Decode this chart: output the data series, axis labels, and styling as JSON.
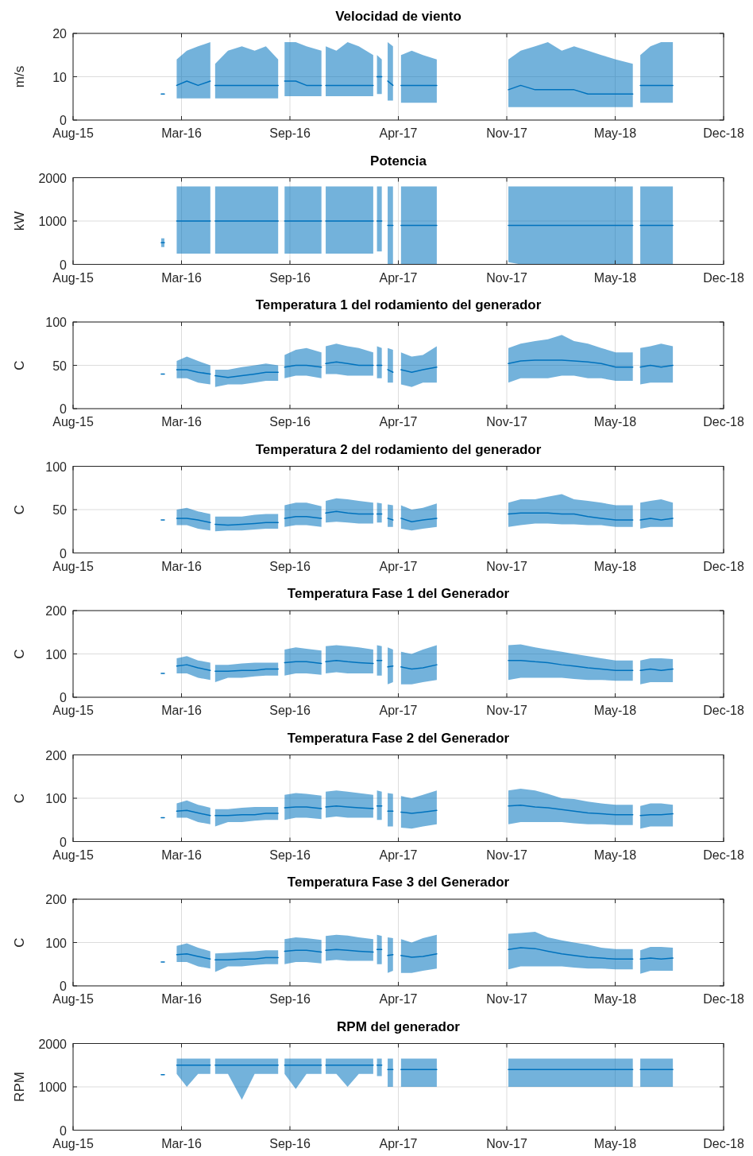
{
  "chart_data": [
    {
      "type": "line",
      "title": "Velocidad de viento",
      "ylabel": "m/s",
      "grid": true,
      "xlim": [
        "2015-08-20",
        "2018-12-20"
      ],
      "xticks": [
        {
          "value": "2015-08-20",
          "label": "Aug-15"
        },
        {
          "value": "2016-03-10",
          "label": "Mar-16"
        },
        {
          "value": "2016-09-29",
          "label": "Sep-16"
        },
        {
          "value": "2017-04-20",
          "label": "Apr-17"
        },
        {
          "value": "2017-11-09",
          "label": "Nov-17"
        },
        {
          "value": "2018-05-31",
          "label": "May-18"
        },
        {
          "value": "2018-12-20",
          "label": "Dec-18"
        }
      ],
      "ylim": [
        0,
        20
      ],
      "yticks": [
        0,
        10,
        20
      ],
      "x": [
        "2016-02-01",
        "2016-02-07",
        "2016-02-15",
        "2016-03-01",
        "2016-03-20",
        "2016-04-10",
        "2016-05-03",
        "2016-05-07",
        "2016-05-12",
        "2016-06-05",
        "2016-07-01",
        "2016-07-25",
        "2016-08-15",
        "2016-09-07",
        "2016-09-13",
        "2016-09-19",
        "2016-10-10",
        "2016-10-30",
        "2016-11-27",
        "2016-12-01",
        "2016-12-05",
        "2016-12-25",
        "2017-01-15",
        "2017-02-05",
        "2017-03-04",
        "2017-03-08",
        "2017-03-11",
        "2017-03-20",
        "2017-03-25",
        "2017-03-31",
        "2017-04-10",
        "2017-04-18",
        "2017-04-25",
        "2017-05-15",
        "2017-06-05",
        "2017-07-01",
        "2017-09-01",
        "2017-11-12",
        "2017-12-05",
        "2018-01-01",
        "2018-01-25",
        "2018-02-20",
        "2018-03-15",
        "2018-04-10",
        "2018-05-05",
        "2018-06-01",
        "2018-07-03",
        "2018-07-10",
        "2018-07-17",
        "2018-08-05",
        "2018-08-25",
        "2018-09-16"
      ],
      "series": [
        {
          "color": "#0072bd",
          "values": [
            6,
            6,
            null,
            8,
            9,
            8,
            9,
            null,
            8,
            8,
            8,
            8,
            8,
            8,
            null,
            9,
            9,
            8,
            8,
            null,
            8,
            8,
            8,
            8,
            8,
            null,
            10,
            10,
            null,
            9,
            8,
            null,
            8,
            8,
            8,
            8,
            null,
            7,
            8,
            7,
            7,
            7,
            7,
            6,
            6,
            6,
            6,
            null,
            8,
            8,
            8,
            8
          ],
          "lower": [
            null,
            null,
            null,
            5,
            5,
            5,
            5,
            null,
            5,
            5,
            5,
            5,
            5,
            5,
            null,
            5.5,
            5.5,
            5.5,
            5.5,
            null,
            5.5,
            5.5,
            5.5,
            5.5,
            5.5,
            null,
            6,
            6,
            null,
            4.5,
            4.5,
            null,
            4,
            4,
            4,
            4,
            null,
            3,
            3,
            3,
            3,
            3,
            3,
            3,
            3,
            3,
            3,
            null,
            4,
            4,
            4,
            4
          ],
          "upper": [
            null,
            null,
            null,
            14,
            16,
            17,
            18,
            null,
            13,
            16,
            17,
            16,
            17,
            14,
            null,
            18,
            18,
            17,
            16,
            null,
            17,
            16,
            18,
            17,
            15,
            null,
            15,
            14,
            null,
            18,
            17,
            null,
            15,
            16,
            15,
            14,
            null,
            14,
            16,
            17,
            18,
            16,
            17,
            16,
            15,
            14,
            13,
            null,
            15,
            17,
            18,
            18
          ]
        }
      ]
    },
    {
      "type": "line",
      "title": "Potencia",
      "ylabel": "kW",
      "grid": true,
      "xlim": [
        "2015-08-20",
        "2018-12-20"
      ],
      "xticks": [
        {
          "value": "2015-08-20",
          "label": "Aug-15"
        },
        {
          "value": "2016-03-10",
          "label": "Mar-16"
        },
        {
          "value": "2016-09-29",
          "label": "Sep-16"
        },
        {
          "value": "2017-04-20",
          "label": "Apr-17"
        },
        {
          "value": "2017-11-09",
          "label": "Nov-17"
        },
        {
          "value": "2018-05-31",
          "label": "May-18"
        },
        {
          "value": "2018-12-20",
          "label": "Dec-18"
        }
      ],
      "ylim": [
        0,
        2000
      ],
      "yticks": [
        0,
        1000,
        2000
      ],
      "x": [
        "2016-02-01",
        "2016-02-07",
        "2016-02-15",
        "2016-03-01",
        "2016-03-20",
        "2016-04-10",
        "2016-05-03",
        "2016-05-07",
        "2016-05-12",
        "2016-06-05",
        "2016-07-01",
        "2016-07-25",
        "2016-08-15",
        "2016-09-07",
        "2016-09-13",
        "2016-09-19",
        "2016-10-10",
        "2016-10-30",
        "2016-11-27",
        "2016-12-01",
        "2016-12-05",
        "2016-12-25",
        "2017-01-15",
        "2017-02-05",
        "2017-03-04",
        "2017-03-08",
        "2017-03-11",
        "2017-03-20",
        "2017-03-25",
        "2017-03-31",
        "2017-04-10",
        "2017-04-18",
        "2017-04-25",
        "2017-05-15",
        "2017-06-05",
        "2017-07-01",
        "2017-09-01",
        "2017-11-12",
        "2017-12-05",
        "2018-01-01",
        "2018-01-25",
        "2018-02-20",
        "2018-03-15",
        "2018-04-10",
        "2018-05-05",
        "2018-06-01",
        "2018-07-03",
        "2018-07-10",
        "2018-07-17",
        "2018-08-05",
        "2018-08-25",
        "2018-09-16"
      ],
      "series": [
        {
          "color": "#0072bd",
          "values": [
            500,
            500,
            null,
            1000,
            1000,
            1000,
            1000,
            null,
            1000,
            1000,
            1000,
            1000,
            1000,
            1000,
            null,
            1000,
            1000,
            1000,
            1000,
            null,
            1000,
            1000,
            1000,
            1000,
            1000,
            null,
            1000,
            1000,
            null,
            900,
            900,
            null,
            900,
            900,
            900,
            900,
            null,
            900,
            900,
            900,
            900,
            900,
            900,
            900,
            900,
            900,
            900,
            null,
            900,
            900,
            900,
            900
          ],
          "lower": [
            400,
            400,
            null,
            250,
            250,
            250,
            250,
            null,
            250,
            250,
            250,
            250,
            250,
            250,
            null,
            250,
            250,
            250,
            250,
            null,
            250,
            250,
            250,
            250,
            250,
            null,
            300,
            300,
            null,
            0,
            0,
            null,
            0,
            0,
            0,
            0,
            null,
            50,
            0,
            0,
            0,
            0,
            0,
            0,
            0,
            0,
            0,
            null,
            0,
            0,
            0,
            0
          ],
          "upper": [
            600,
            600,
            null,
            1800,
            1800,
            1800,
            1800,
            null,
            1800,
            1800,
            1800,
            1800,
            1800,
            1800,
            null,
            1800,
            1800,
            1800,
            1800,
            null,
            1800,
            1800,
            1800,
            1800,
            1800,
            null,
            1800,
            1800,
            null,
            1800,
            1800,
            null,
            1800,
            1800,
            1800,
            1800,
            null,
            1800,
            1800,
            1800,
            1800,
            1800,
            1800,
            1800,
            1800,
            1800,
            1800,
            null,
            1800,
            1800,
            1800,
            1800
          ]
        }
      ]
    },
    {
      "type": "line",
      "title": "Temperatura 1 del rodamiento del generador",
      "ylabel": "C",
      "grid": true,
      "xlim": [
        "2015-08-20",
        "2018-12-20"
      ],
      "xticks": [
        {
          "value": "2015-08-20",
          "label": "Aug-15"
        },
        {
          "value": "2016-03-10",
          "label": "Mar-16"
        },
        {
          "value": "2016-09-29",
          "label": "Sep-16"
        },
        {
          "value": "2017-04-20",
          "label": "Apr-17"
        },
        {
          "value": "2017-11-09",
          "label": "Nov-17"
        },
        {
          "value": "2018-05-31",
          "label": "May-18"
        },
        {
          "value": "2018-12-20",
          "label": "Dec-18"
        }
      ],
      "ylim": [
        0,
        100
      ],
      "yticks": [
        0,
        50,
        100
      ],
      "x": [
        "2016-02-01",
        "2016-02-07",
        "2016-02-15",
        "2016-03-01",
        "2016-03-20",
        "2016-04-10",
        "2016-05-03",
        "2016-05-07",
        "2016-05-12",
        "2016-06-05",
        "2016-07-01",
        "2016-07-25",
        "2016-08-15",
        "2016-09-07",
        "2016-09-13",
        "2016-09-19",
        "2016-10-10",
        "2016-10-30",
        "2016-11-27",
        "2016-12-01",
        "2016-12-05",
        "2016-12-25",
        "2017-01-15",
        "2017-02-05",
        "2017-03-04",
        "2017-03-08",
        "2017-03-11",
        "2017-03-20",
        "2017-03-25",
        "2017-03-31",
        "2017-04-10",
        "2017-04-18",
        "2017-04-25",
        "2017-05-15",
        "2017-06-05",
        "2017-07-01",
        "2017-09-01",
        "2017-11-12",
        "2017-12-05",
        "2018-01-01",
        "2018-01-25",
        "2018-02-20",
        "2018-03-15",
        "2018-04-10",
        "2018-05-05",
        "2018-06-01",
        "2018-07-03",
        "2018-07-10",
        "2018-07-17",
        "2018-08-05",
        "2018-08-25",
        "2018-09-16"
      ],
      "series": [
        {
          "color": "#0072bd",
          "values": [
            40,
            40,
            null,
            45,
            45,
            42,
            40,
            null,
            38,
            36,
            38,
            40,
            42,
            42,
            null,
            48,
            50,
            50,
            48,
            null,
            52,
            54,
            52,
            50,
            50,
            null,
            50,
            50,
            null,
            45,
            42,
            null,
            45,
            42,
            45,
            48,
            null,
            52,
            55,
            56,
            56,
            56,
            55,
            54,
            52,
            48,
            48,
            null,
            48,
            50,
            48,
            50
          ],
          "lower": [
            null,
            null,
            null,
            35,
            35,
            30,
            28,
            null,
            25,
            28,
            28,
            30,
            32,
            32,
            null,
            35,
            38,
            38,
            35,
            null,
            40,
            40,
            38,
            38,
            38,
            null,
            35,
            35,
            null,
            30,
            30,
            null,
            28,
            25,
            30,
            30,
            null,
            30,
            35,
            35,
            35,
            38,
            38,
            35,
            35,
            32,
            32,
            null,
            28,
            30,
            30,
            30
          ],
          "upper": [
            null,
            null,
            null,
            55,
            60,
            55,
            50,
            null,
            45,
            45,
            48,
            50,
            52,
            50,
            null,
            62,
            68,
            70,
            65,
            null,
            72,
            75,
            72,
            70,
            65,
            null,
            72,
            70,
            null,
            70,
            68,
            null,
            65,
            60,
            62,
            72,
            null,
            70,
            75,
            78,
            80,
            85,
            78,
            75,
            70,
            65,
            65,
            null,
            70,
            72,
            75,
            72
          ]
        }
      ]
    },
    {
      "type": "line",
      "title": "Temperatura 2 del rodamiento del generador",
      "ylabel": "C",
      "grid": true,
      "xlim": [
        "2015-08-20",
        "2018-12-20"
      ],
      "xticks": [
        {
          "value": "2015-08-20",
          "label": "Aug-15"
        },
        {
          "value": "2016-03-10",
          "label": "Mar-16"
        },
        {
          "value": "2016-09-29",
          "label": "Sep-16"
        },
        {
          "value": "2017-04-20",
          "label": "Apr-17"
        },
        {
          "value": "2017-11-09",
          "label": "Nov-17"
        },
        {
          "value": "2018-05-31",
          "label": "May-18"
        },
        {
          "value": "2018-12-20",
          "label": "Dec-18"
        }
      ],
      "ylim": [
        0,
        100
      ],
      "yticks": [
        0,
        50,
        100
      ],
      "x": [
        "2016-02-01",
        "2016-02-07",
        "2016-02-15",
        "2016-03-01",
        "2016-03-20",
        "2016-04-10",
        "2016-05-03",
        "2016-05-07",
        "2016-05-12",
        "2016-06-05",
        "2016-07-01",
        "2016-07-25",
        "2016-08-15",
        "2016-09-07",
        "2016-09-13",
        "2016-09-19",
        "2016-10-10",
        "2016-10-30",
        "2016-11-27",
        "2016-12-01",
        "2016-12-05",
        "2016-12-25",
        "2017-01-15",
        "2017-02-05",
        "2017-03-04",
        "2017-03-08",
        "2017-03-11",
        "2017-03-20",
        "2017-03-25",
        "2017-03-31",
        "2017-04-10",
        "2017-04-18",
        "2017-04-25",
        "2017-05-15",
        "2017-06-05",
        "2017-07-01",
        "2017-09-01",
        "2017-11-12",
        "2017-12-05",
        "2018-01-01",
        "2018-01-25",
        "2018-02-20",
        "2018-03-15",
        "2018-04-10",
        "2018-05-05",
        "2018-06-01",
        "2018-07-03",
        "2018-07-10",
        "2018-07-17",
        "2018-08-05",
        "2018-08-25",
        "2018-09-16"
      ],
      "series": [
        {
          "color": "#0072bd",
          "values": [
            38,
            38,
            null,
            40,
            40,
            38,
            35,
            null,
            33,
            32,
            33,
            34,
            35,
            35,
            null,
            40,
            42,
            42,
            40,
            null,
            46,
            48,
            46,
            45,
            45,
            null,
            45,
            45,
            null,
            40,
            38,
            null,
            40,
            36,
            38,
            40,
            null,
            45,
            46,
            46,
            46,
            45,
            45,
            42,
            40,
            38,
            38,
            null,
            38,
            40,
            38,
            40
          ],
          "lower": [
            null,
            null,
            null,
            32,
            32,
            28,
            26,
            null,
            25,
            26,
            26,
            27,
            28,
            28,
            null,
            30,
            32,
            32,
            30,
            null,
            35,
            36,
            35,
            34,
            34,
            null,
            35,
            35,
            null,
            30,
            30,
            null,
            28,
            26,
            28,
            30,
            null,
            30,
            32,
            34,
            34,
            33,
            33,
            32,
            32,
            30,
            30,
            null,
            28,
            30,
            30,
            30
          ],
          "upper": [
            null,
            null,
            null,
            50,
            52,
            48,
            45,
            null,
            42,
            42,
            42,
            44,
            45,
            45,
            null,
            55,
            58,
            58,
            54,
            null,
            60,
            63,
            62,
            60,
            58,
            null,
            58,
            57,
            null,
            56,
            55,
            null,
            55,
            50,
            52,
            57,
            null,
            58,
            62,
            62,
            65,
            68,
            62,
            60,
            58,
            55,
            55,
            null,
            58,
            60,
            62,
            58
          ]
        }
      ]
    },
    {
      "type": "line",
      "title": "Temperatura Fase 1 del Generador",
      "ylabel": "C",
      "grid": true,
      "xlim": [
        "2015-08-20",
        "2018-12-20"
      ],
      "xticks": [
        {
          "value": "2015-08-20",
          "label": "Aug-15"
        },
        {
          "value": "2016-03-10",
          "label": "Mar-16"
        },
        {
          "value": "2016-09-29",
          "label": "Sep-16"
        },
        {
          "value": "2017-04-20",
          "label": "Apr-17"
        },
        {
          "value": "2017-11-09",
          "label": "Nov-17"
        },
        {
          "value": "2018-05-31",
          "label": "May-18"
        },
        {
          "value": "2018-12-20",
          "label": "Dec-18"
        }
      ],
      "ylim": [
        0,
        200
      ],
      "yticks": [
        0,
        100,
        200
      ],
      "x": [
        "2016-02-01",
        "2016-02-07",
        "2016-02-15",
        "2016-03-01",
        "2016-03-20",
        "2016-04-10",
        "2016-05-03",
        "2016-05-07",
        "2016-05-12",
        "2016-06-05",
        "2016-07-01",
        "2016-07-25",
        "2016-08-15",
        "2016-09-07",
        "2016-09-13",
        "2016-09-19",
        "2016-10-10",
        "2016-10-30",
        "2016-11-27",
        "2016-12-01",
        "2016-12-05",
        "2016-12-25",
        "2017-01-15",
        "2017-02-05",
        "2017-03-04",
        "2017-03-08",
        "2017-03-11",
        "2017-03-20",
        "2017-03-25",
        "2017-03-31",
        "2017-04-10",
        "2017-04-18",
        "2017-04-25",
        "2017-05-15",
        "2017-06-05",
        "2017-07-01",
        "2017-09-01",
        "2017-11-12",
        "2017-12-05",
        "2018-01-01",
        "2018-01-25",
        "2018-02-20",
        "2018-03-15",
        "2018-04-10",
        "2018-05-05",
        "2018-06-01",
        "2018-07-03",
        "2018-07-10",
        "2018-07-17",
        "2018-08-05",
        "2018-08-25",
        "2018-09-16"
      ],
      "series": [
        {
          "color": "#0072bd",
          "values": [
            55,
            55,
            null,
            72,
            75,
            68,
            62,
            null,
            60,
            60,
            62,
            62,
            65,
            65,
            null,
            80,
            82,
            82,
            78,
            null,
            82,
            85,
            82,
            80,
            78,
            null,
            85,
            85,
            null,
            70,
            72,
            null,
            70,
            65,
            68,
            75,
            null,
            85,
            85,
            82,
            80,
            75,
            72,
            68,
            65,
            62,
            62,
            null,
            62,
            65,
            62,
            65
          ],
          "lower": [
            null,
            null,
            null,
            55,
            55,
            45,
            40,
            null,
            35,
            45,
            45,
            48,
            50,
            50,
            null,
            50,
            55,
            55,
            52,
            null,
            55,
            58,
            55,
            55,
            55,
            null,
            50,
            50,
            null,
            30,
            35,
            null,
            30,
            30,
            35,
            40,
            null,
            40,
            45,
            45,
            45,
            45,
            42,
            40,
            40,
            38,
            38,
            null,
            30,
            35,
            35,
            35
          ],
          "upper": [
            null,
            null,
            null,
            90,
            95,
            85,
            80,
            null,
            75,
            75,
            78,
            80,
            80,
            80,
            null,
            110,
            115,
            112,
            108,
            null,
            118,
            120,
            118,
            115,
            110,
            null,
            120,
            118,
            null,
            115,
            110,
            null,
            105,
            100,
            110,
            120,
            null,
            120,
            122,
            115,
            110,
            105,
            100,
            95,
            90,
            85,
            85,
            null,
            85,
            90,
            90,
            88
          ]
        }
      ]
    },
    {
      "type": "line",
      "title": "Temperatura Fase 2 del Generador",
      "ylabel": "C",
      "grid": true,
      "xlim": [
        "2015-08-20",
        "2018-12-20"
      ],
      "xticks": [
        {
          "value": "2015-08-20",
          "label": "Aug-15"
        },
        {
          "value": "2016-03-10",
          "label": "Mar-16"
        },
        {
          "value": "2016-09-29",
          "label": "Sep-16"
        },
        {
          "value": "2017-04-20",
          "label": "Apr-17"
        },
        {
          "value": "2017-11-09",
          "label": "Nov-17"
        },
        {
          "value": "2018-05-31",
          "label": "May-18"
        },
        {
          "value": "2018-12-20",
          "label": "Dec-18"
        }
      ],
      "ylim": [
        0,
        200
      ],
      "yticks": [
        0,
        100,
        200
      ],
      "x": [
        "2016-02-01",
        "2016-02-07",
        "2016-02-15",
        "2016-03-01",
        "2016-03-20",
        "2016-04-10",
        "2016-05-03",
        "2016-05-07",
        "2016-05-12",
        "2016-06-05",
        "2016-07-01",
        "2016-07-25",
        "2016-08-15",
        "2016-09-07",
        "2016-09-13",
        "2016-09-19",
        "2016-10-10",
        "2016-10-30",
        "2016-11-27",
        "2016-12-01",
        "2016-12-05",
        "2016-12-25",
        "2017-01-15",
        "2017-02-05",
        "2017-03-04",
        "2017-03-08",
        "2017-03-11",
        "2017-03-20",
        "2017-03-25",
        "2017-03-31",
        "2017-04-10",
        "2017-04-18",
        "2017-04-25",
        "2017-05-15",
        "2017-06-05",
        "2017-07-01",
        "2017-09-01",
        "2017-11-12",
        "2017-12-05",
        "2018-01-01",
        "2018-01-25",
        "2018-02-20",
        "2018-03-15",
        "2018-04-10",
        "2018-05-05",
        "2018-06-01",
        "2018-07-03",
        "2018-07-10",
        "2018-07-17",
        "2018-08-05",
        "2018-08-25",
        "2018-09-16"
      ],
      "series": [
        {
          "color": "#0072bd",
          "values": [
            55,
            55,
            null,
            70,
            72,
            66,
            60,
            null,
            60,
            60,
            62,
            62,
            65,
            65,
            null,
            78,
            80,
            80,
            76,
            null,
            80,
            82,
            80,
            78,
            76,
            null,
            82,
            82,
            null,
            70,
            70,
            null,
            68,
            65,
            68,
            72,
            null,
            82,
            84,
            80,
            78,
            74,
            70,
            66,
            64,
            62,
            62,
            null,
            60,
            62,
            62,
            64
          ],
          "lower": [
            null,
            null,
            null,
            55,
            55,
            45,
            40,
            null,
            35,
            45,
            45,
            48,
            50,
            50,
            null,
            50,
            55,
            55,
            52,
            null,
            55,
            58,
            55,
            55,
            55,
            null,
            50,
            50,
            null,
            35,
            35,
            null,
            32,
            30,
            35,
            40,
            null,
            40,
            45,
            45,
            45,
            45,
            42,
            40,
            40,
            38,
            38,
            null,
            30,
            35,
            35,
            35
          ],
          "upper": [
            null,
            null,
            null,
            88,
            95,
            85,
            78,
            null,
            75,
            75,
            78,
            80,
            80,
            80,
            null,
            108,
            112,
            110,
            106,
            null,
            115,
            118,
            115,
            112,
            108,
            null,
            118,
            115,
            null,
            112,
            110,
            null,
            105,
            100,
            108,
            118,
            null,
            118,
            122,
            118,
            110,
            100,
            98,
            92,
            88,
            85,
            85,
            null,
            82,
            88,
            88,
            85
          ]
        }
      ]
    },
    {
      "type": "line",
      "title": "Temperatura Fase 3 del Generador",
      "ylabel": "C",
      "grid": true,
      "xlim": [
        "2015-08-20",
        "2018-12-20"
      ],
      "xticks": [
        {
          "value": "2015-08-20",
          "label": "Aug-15"
        },
        {
          "value": "2016-03-10",
          "label": "Mar-16"
        },
        {
          "value": "2016-09-29",
          "label": "Sep-16"
        },
        {
          "value": "2017-04-20",
          "label": "Apr-17"
        },
        {
          "value": "2017-11-09",
          "label": "Nov-17"
        },
        {
          "value": "2018-05-31",
          "label": "May-18"
        },
        {
          "value": "2018-12-20",
          "label": "Dec-18"
        }
      ],
      "ylim": [
        0,
        200
      ],
      "yticks": [
        0,
        100,
        200
      ],
      "x": [
        "2016-02-01",
        "2016-02-07",
        "2016-02-15",
        "2016-03-01",
        "2016-03-20",
        "2016-04-10",
        "2016-05-03",
        "2016-05-07",
        "2016-05-12",
        "2016-06-05",
        "2016-07-01",
        "2016-07-25",
        "2016-08-15",
        "2016-09-07",
        "2016-09-13",
        "2016-09-19",
        "2016-10-10",
        "2016-10-30",
        "2016-11-27",
        "2016-12-01",
        "2016-12-05",
        "2016-12-25",
        "2017-01-15",
        "2017-02-05",
        "2017-03-04",
        "2017-03-08",
        "2017-03-11",
        "2017-03-20",
        "2017-03-25",
        "2017-03-31",
        "2017-04-10",
        "2017-04-18",
        "2017-04-25",
        "2017-05-15",
        "2017-06-05",
        "2017-07-01",
        "2017-09-01",
        "2017-11-12",
        "2017-12-05",
        "2018-01-01",
        "2018-01-25",
        "2018-02-20",
        "2018-03-15",
        "2018-04-10",
        "2018-05-05",
        "2018-06-01",
        "2018-07-03",
        "2018-07-10",
        "2018-07-17",
        "2018-08-05",
        "2018-08-25",
        "2018-09-16"
      ],
      "series": [
        {
          "color": "#0072bd",
          "values": [
            55,
            55,
            null,
            72,
            74,
            68,
            62,
            null,
            60,
            60,
            62,
            62,
            65,
            65,
            null,
            80,
            82,
            82,
            78,
            null,
            82,
            84,
            82,
            80,
            78,
            null,
            84,
            84,
            null,
            70,
            72,
            null,
            70,
            66,
            68,
            74,
            null,
            84,
            88,
            86,
            80,
            74,
            70,
            66,
            64,
            62,
            62,
            null,
            62,
            64,
            62,
            64
          ],
          "lower": [
            null,
            null,
            null,
            55,
            55,
            45,
            40,
            null,
            32,
            45,
            45,
            48,
            50,
            50,
            null,
            50,
            55,
            55,
            52,
            null,
            58,
            60,
            58,
            58,
            58,
            null,
            50,
            50,
            null,
            30,
            35,
            null,
            30,
            30,
            35,
            40,
            null,
            38,
            45,
            45,
            45,
            45,
            42,
            40,
            40,
            38,
            38,
            null,
            28,
            35,
            35,
            35
          ],
          "upper": [
            null,
            null,
            null,
            92,
            98,
            88,
            80,
            null,
            75,
            76,
            78,
            80,
            82,
            82,
            null,
            108,
            112,
            110,
            106,
            null,
            115,
            118,
            116,
            112,
            108,
            null,
            118,
            115,
            null,
            112,
            110,
            null,
            108,
            100,
            110,
            118,
            null,
            120,
            122,
            125,
            112,
            105,
            100,
            95,
            88,
            85,
            85,
            null,
            82,
            90,
            90,
            88
          ]
        }
      ]
    },
    {
      "type": "line",
      "title": "RPM del generador",
      "ylabel": "RPM",
      "grid": true,
      "xlim": [
        "2015-08-20",
        "2018-12-20"
      ],
      "xticks": [
        {
          "value": "2015-08-20",
          "label": "Aug-15"
        },
        {
          "value": "2016-03-10",
          "label": "Mar-16"
        },
        {
          "value": "2016-09-29",
          "label": "Sep-16"
        },
        {
          "value": "2017-04-20",
          "label": "Apr-17"
        },
        {
          "value": "2017-11-09",
          "label": "Nov-17"
        },
        {
          "value": "2018-05-31",
          "label": "May-18"
        },
        {
          "value": "2018-12-20",
          "label": "Dec-18"
        }
      ],
      "ylim": [
        0,
        2000
      ],
      "yticks": [
        0,
        1000,
        2000
      ],
      "x": [
        "2016-02-01",
        "2016-02-07",
        "2016-02-15",
        "2016-03-01",
        "2016-03-20",
        "2016-04-10",
        "2016-05-03",
        "2016-05-07",
        "2016-05-12",
        "2016-06-05",
        "2016-07-01",
        "2016-07-25",
        "2016-08-15",
        "2016-09-07",
        "2016-09-13",
        "2016-09-19",
        "2016-10-10",
        "2016-10-30",
        "2016-11-27",
        "2016-12-01",
        "2016-12-05",
        "2016-12-25",
        "2017-01-15",
        "2017-02-05",
        "2017-03-04",
        "2017-03-08",
        "2017-03-11",
        "2017-03-20",
        "2017-03-25",
        "2017-03-31",
        "2017-04-10",
        "2017-04-18",
        "2017-04-25",
        "2017-05-15",
        "2017-06-05",
        "2017-07-01",
        "2017-09-01",
        "2017-11-12",
        "2017-12-05",
        "2018-01-01",
        "2018-01-25",
        "2018-02-20",
        "2018-03-15",
        "2018-04-10",
        "2018-05-05",
        "2018-06-01",
        "2018-07-03",
        "2018-07-10",
        "2018-07-17",
        "2018-08-05",
        "2018-08-25",
        "2018-09-16"
      ],
      "series": [
        {
          "color": "#0072bd",
          "values": [
            1280,
            1280,
            null,
            1500,
            1500,
            1500,
            1500,
            null,
            1500,
            1500,
            1500,
            1500,
            1500,
            1500,
            null,
            1500,
            1500,
            1500,
            1500,
            null,
            1500,
            1500,
            1500,
            1500,
            1500,
            null,
            1500,
            1500,
            null,
            1400,
            1400,
            null,
            1400,
            1400,
            1400,
            1400,
            null,
            1400,
            1400,
            1400,
            1400,
            1400,
            1400,
            1400,
            1400,
            1400,
            1400,
            null,
            1400,
            1400,
            1400,
            1400
          ],
          "lower": [
            null,
            null,
            null,
            1300,
            1000,
            1300,
            1300,
            null,
            1300,
            1300,
            700,
            1300,
            1300,
            1300,
            null,
            1300,
            950,
            1300,
            1300,
            null,
            1300,
            1300,
            1000,
            1300,
            1300,
            null,
            1250,
            1250,
            null,
            1000,
            1000,
            null,
            1000,
            1000,
            1000,
            1000,
            null,
            1000,
            1000,
            1000,
            1000,
            1000,
            1000,
            1000,
            1000,
            1000,
            1000,
            null,
            1000,
            1000,
            1000,
            1000
          ],
          "upper": [
            null,
            null,
            null,
            1650,
            1650,
            1650,
            1650,
            null,
            1650,
            1650,
            1650,
            1650,
            1650,
            1650,
            null,
            1650,
            1650,
            1650,
            1650,
            null,
            1650,
            1650,
            1650,
            1650,
            1650,
            null,
            1650,
            1650,
            null,
            1650,
            1650,
            null,
            1650,
            1650,
            1650,
            1650,
            null,
            1650,
            1650,
            1650,
            1650,
            1650,
            1650,
            1650,
            1650,
            1650,
            1650,
            null,
            1650,
            1650,
            1650,
            1650
          ]
        }
      ]
    }
  ]
}
